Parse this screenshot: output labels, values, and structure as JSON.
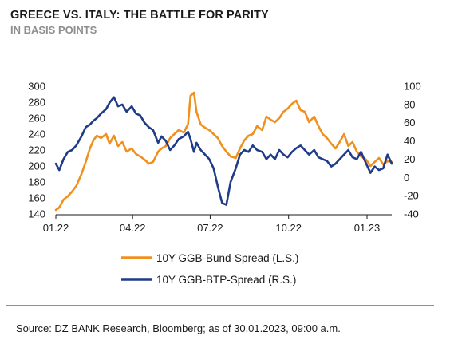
{
  "header": {
    "title": "GREECE VS. ITALY: THE BATTLE FOR PARITY",
    "subtitle": "IN BASIS POINTS"
  },
  "footer": {
    "source": "Source: DZ BANK Research, Bloomberg; as of 30.01.2023, 09:00 a.m."
  },
  "colors": {
    "bund_series": "#f0901e",
    "btp_series": "#1f3c88",
    "axis": "#1a1a1a",
    "separator": "#222222"
  },
  "chart_data": {
    "type": "line",
    "title": "GREECE VS. ITALY: THE BATTLE FOR PARITY",
    "subtitle": "IN BASIS POINTS",
    "x_tick_labels": [
      "01.22",
      "04.22",
      "07.22",
      "10.22",
      "01.23"
    ],
    "x_range": [
      "2022-01-01",
      "2023-01-30"
    ],
    "y_left": {
      "range": [
        140,
        300
      ],
      "ticks": [
        140,
        160,
        180,
        200,
        220,
        240,
        260,
        280,
        300
      ]
    },
    "y_right": {
      "range": [
        -40,
        100
      ],
      "ticks": [
        -40,
        -20,
        0,
        20,
        40,
        60,
        80,
        100
      ]
    },
    "grid": false,
    "legend_position": "bottom",
    "series": [
      {
        "name": "10Y GGB-Bund-Spread (L.S.)",
        "axis": "left",
        "color": "#f0901e",
        "x": [
          "2022-01-01",
          "2022-01-05",
          "2022-01-10",
          "2022-01-15",
          "2022-01-20",
          "2022-01-25",
          "2022-01-31",
          "2022-02-05",
          "2022-02-10",
          "2022-02-14",
          "2022-02-18",
          "2022-02-23",
          "2022-03-01",
          "2022-03-05",
          "2022-03-10",
          "2022-03-15",
          "2022-03-20",
          "2022-03-25",
          "2022-03-31",
          "2022-04-05",
          "2022-04-10",
          "2022-04-15",
          "2022-04-20",
          "2022-04-25",
          "2022-05-01",
          "2022-05-05",
          "2022-05-10",
          "2022-05-15",
          "2022-05-20",
          "2022-05-25",
          "2022-05-31",
          "2022-06-05",
          "2022-06-08",
          "2022-06-12",
          "2022-06-15",
          "2022-06-20",
          "2022-06-25",
          "2022-06-30",
          "2022-07-05",
          "2022-07-10",
          "2022-07-15",
          "2022-07-20",
          "2022-07-25",
          "2022-07-31",
          "2022-08-05",
          "2022-08-10",
          "2022-08-15",
          "2022-08-20",
          "2022-08-25",
          "2022-08-31",
          "2022-09-05",
          "2022-09-10",
          "2022-09-15",
          "2022-09-20",
          "2022-09-25",
          "2022-09-30",
          "2022-10-05",
          "2022-10-10",
          "2022-10-15",
          "2022-10-20",
          "2022-10-25",
          "2022-10-31",
          "2022-11-05",
          "2022-11-10",
          "2022-11-15",
          "2022-11-20",
          "2022-11-25",
          "2022-11-30",
          "2022-12-05",
          "2022-12-10",
          "2022-12-15",
          "2022-12-20",
          "2022-12-25",
          "2022-12-31",
          "2023-01-05",
          "2023-01-10",
          "2023-01-15",
          "2023-01-20",
          "2023-01-25",
          "2023-01-30"
        ],
        "values": [
          145,
          148,
          158,
          162,
          168,
          175,
          190,
          205,
          222,
          232,
          238,
          235,
          240,
          228,
          238,
          225,
          230,
          218,
          222,
          215,
          212,
          208,
          203,
          205,
          218,
          222,
          225,
          235,
          240,
          245,
          242,
          252,
          288,
          292,
          268,
          252,
          248,
          245,
          240,
          235,
          225,
          218,
          212,
          210,
          222,
          232,
          238,
          240,
          250,
          245,
          262,
          258,
          255,
          260,
          268,
          272,
          278,
          282,
          270,
          268,
          255,
          262,
          250,
          240,
          235,
          228,
          222,
          230,
          240,
          225,
          230,
          218,
          212,
          208,
          200,
          205,
          210,
          202,
          206,
          205
        ]
      },
      {
        "name": "10Y GGB-BTP-Spread (R.S.)",
        "axis": "right",
        "color": "#1f3c88",
        "x": [
          "2022-01-01",
          "2022-01-05",
          "2022-01-10",
          "2022-01-15",
          "2022-01-20",
          "2022-01-25",
          "2022-01-31",
          "2022-02-05",
          "2022-02-10",
          "2022-02-14",
          "2022-02-18",
          "2022-02-23",
          "2022-03-01",
          "2022-03-05",
          "2022-03-10",
          "2022-03-15",
          "2022-03-20",
          "2022-03-25",
          "2022-03-31",
          "2022-04-05",
          "2022-04-10",
          "2022-04-15",
          "2022-04-20",
          "2022-04-25",
          "2022-05-01",
          "2022-05-05",
          "2022-05-10",
          "2022-05-15",
          "2022-05-20",
          "2022-05-25",
          "2022-05-31",
          "2022-06-05",
          "2022-06-08",
          "2022-06-12",
          "2022-06-15",
          "2022-06-20",
          "2022-06-25",
          "2022-06-30",
          "2022-07-05",
          "2022-07-10",
          "2022-07-15",
          "2022-07-20",
          "2022-07-25",
          "2022-07-31",
          "2022-08-05",
          "2022-08-10",
          "2022-08-15",
          "2022-08-20",
          "2022-08-25",
          "2022-08-31",
          "2022-09-05",
          "2022-09-10",
          "2022-09-15",
          "2022-09-20",
          "2022-09-25",
          "2022-09-30",
          "2022-10-05",
          "2022-10-10",
          "2022-10-15",
          "2022-10-20",
          "2022-10-25",
          "2022-10-31",
          "2022-11-05",
          "2022-11-10",
          "2022-11-15",
          "2022-11-20",
          "2022-11-25",
          "2022-11-30",
          "2022-12-05",
          "2022-12-10",
          "2022-12-15",
          "2022-12-20",
          "2022-12-25",
          "2022-12-31",
          "2023-01-05",
          "2023-01-10",
          "2023-01-15",
          "2023-01-20",
          "2023-01-25",
          "2023-01-30"
        ],
        "values": [
          15,
          8,
          20,
          28,
          30,
          35,
          45,
          55,
          58,
          62,
          65,
          70,
          75,
          82,
          88,
          78,
          80,
          72,
          78,
          70,
          68,
          60,
          55,
          52,
          38,
          45,
          40,
          30,
          35,
          42,
          45,
          50,
          42,
          28,
          38,
          30,
          25,
          20,
          10,
          -10,
          -28,
          -30,
          -5,
          10,
          25,
          30,
          28,
          35,
          30,
          28,
          20,
          25,
          20,
          30,
          25,
          22,
          28,
          32,
          35,
          30,
          25,
          30,
          22,
          20,
          18,
          12,
          15,
          20,
          25,
          30,
          22,
          20,
          28,
          15,
          5,
          12,
          8,
          10,
          25,
          15
        ]
      }
    ]
  },
  "legend": {
    "items": [
      {
        "label": "10Y GGB-Bund-Spread (L.S.)",
        "color": "#f0901e"
      },
      {
        "label": "10Y GGB-BTP-Spread (R.S.)",
        "color": "#1f3c88"
      }
    ]
  }
}
